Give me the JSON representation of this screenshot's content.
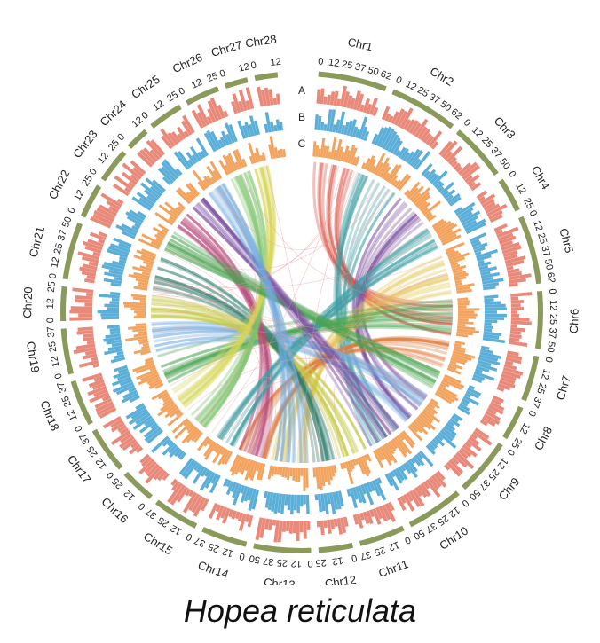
{
  "species_label": "Hopea reticulata",
  "track_labels": [
    "A",
    "B",
    "C"
  ],
  "colors": {
    "ideogram": "#8a9a5b",
    "track_a": "#e8897a",
    "track_b": "#5aaed8",
    "track_c": "#f2a35e",
    "links": [
      "#d94a3c",
      "#3b9ea3",
      "#7b4fa0",
      "#e2c24a",
      "#4aa34f",
      "#e07b39",
      "#6fa8dc",
      "#c2c83c",
      "#2e7d6e",
      "#b84a7a",
      "#7cc46b",
      "#d8d85a"
    ]
  },
  "chromosomes": [
    {
      "name": "Chr1",
      "ticks": [
        "0",
        "12",
        "25",
        "37",
        "50",
        "62"
      ]
    },
    {
      "name": "Chr2",
      "ticks": [
        "0",
        "12",
        "25",
        "37",
        "50",
        "62"
      ]
    },
    {
      "name": "Chr3",
      "ticks": [
        "0",
        "12",
        "25",
        "37",
        "50"
      ]
    },
    {
      "name": "Chr4",
      "ticks": [
        "0",
        "12",
        "25"
      ]
    },
    {
      "name": "Chr5",
      "ticks": [
        "0",
        "12",
        "25",
        "37",
        "50",
        "62"
      ]
    },
    {
      "name": "Chr6",
      "ticks": [
        "0",
        "12",
        "25",
        "37",
        "50"
      ]
    },
    {
      "name": "Chr7",
      "ticks": [
        "0",
        "12",
        "25",
        "37"
      ]
    },
    {
      "name": "Chr8",
      "ticks": [
        "0",
        "12",
        "25"
      ]
    },
    {
      "name": "Chr9",
      "ticks": [
        "0",
        "12",
        "25",
        "37",
        "50"
      ]
    },
    {
      "name": "Chr10",
      "ticks": [
        "0",
        "12",
        "25",
        "37",
        "50"
      ]
    },
    {
      "name": "Chr11",
      "ticks": [
        "0",
        "12",
        "25",
        "37"
      ]
    },
    {
      "name": "Chr12",
      "ticks": [
        "0",
        "12",
        "25"
      ]
    },
    {
      "name": "Chr13",
      "ticks": [
        "0",
        "12",
        "25",
        "37",
        "50"
      ]
    },
    {
      "name": "Chr14",
      "ticks": [
        "0",
        "12",
        "25",
        "37"
      ]
    },
    {
      "name": "Chr15",
      "ticks": [
        "0",
        "12",
        "25",
        "37"
      ]
    },
    {
      "name": "Chr16",
      "ticks": [
        "0",
        "12",
        "25"
      ]
    },
    {
      "name": "Chr17",
      "ticks": [
        "0",
        "12",
        "25",
        "37"
      ]
    },
    {
      "name": "Chr18",
      "ticks": [
        "0",
        "12",
        "25",
        "37"
      ]
    },
    {
      "name": "Chr19",
      "ticks": [
        "0",
        "12",
        "25",
        "37"
      ]
    },
    {
      "name": "Chr20",
      "ticks": [
        "0",
        "12",
        "25"
      ]
    },
    {
      "name": "Chr21",
      "ticks": [
        "0",
        "12",
        "25",
        "37",
        "50"
      ]
    },
    {
      "name": "Chr22",
      "ticks": [
        "0",
        "12",
        "25"
      ]
    },
    {
      "name": "Chr23",
      "ticks": [
        "0",
        "12",
        "25"
      ]
    },
    {
      "name": "Chr24",
      "ticks": [
        "0",
        "12"
      ]
    },
    {
      "name": "Chr25",
      "ticks": [
        "0",
        "12",
        "25"
      ]
    },
    {
      "name": "Chr26",
      "ticks": [
        "0",
        "12",
        "25"
      ]
    },
    {
      "name": "Chr27",
      "ticks": [
        "0",
        "12"
      ]
    },
    {
      "name": "Chr28",
      "ticks": [
        "0",
        "12"
      ]
    }
  ]
}
